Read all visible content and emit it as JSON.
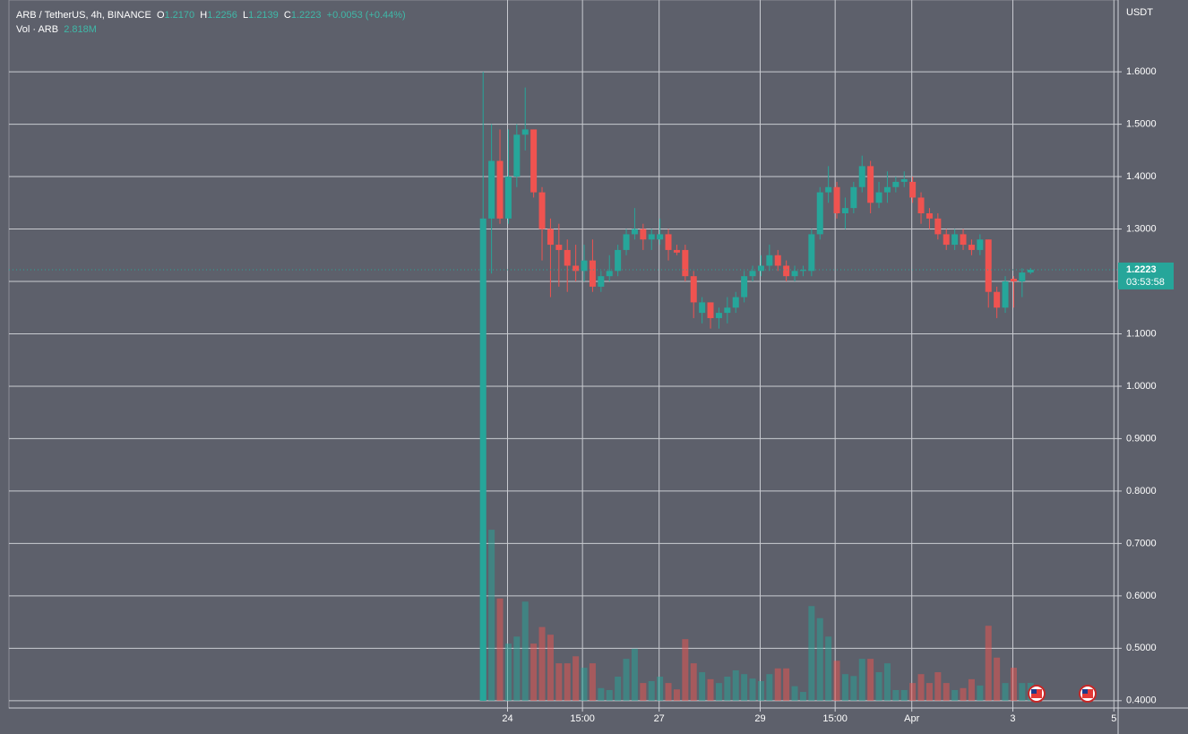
{
  "chart_data": {
    "type": "candlestick",
    "title": "ARB / TetherUS, 4h, BINANCE",
    "ohlc_labels": [
      "O",
      "H",
      "L",
      "C"
    ],
    "ohlc_values": [
      "1.2170",
      "1.2256",
      "1.2139",
      "1.2223"
    ],
    "change": "+0.0053 (+0.44%)",
    "volume_title": "Vol · ARB",
    "volume_value": "2.818M",
    "y_unit": "USDT",
    "x": [
      0,
      1,
      2,
      3,
      4,
      5,
      6,
      7,
      8,
      9,
      10,
      11,
      12,
      13,
      14,
      15,
      16,
      17,
      18,
      19,
      20,
      21,
      22,
      23,
      24,
      25,
      26,
      27,
      28,
      29,
      30,
      31,
      32,
      33,
      34,
      35,
      36,
      37,
      38,
      39,
      40,
      41,
      42,
      43,
      44,
      45,
      46,
      47,
      48,
      49,
      50,
      51,
      52,
      53,
      54,
      55,
      56,
      57,
      58,
      59,
      60,
      61,
      62,
      63,
      64,
      65
    ],
    "open": [
      0.4,
      1.32,
      1.43,
      1.32,
      1.4,
      1.48,
      1.49,
      1.37,
      1.3,
      1.27,
      1.26,
      1.23,
      1.22,
      1.24,
      1.19,
      1.21,
      1.22,
      1.26,
      1.29,
      1.3,
      1.28,
      1.28,
      1.29,
      1.26,
      1.26,
      1.21,
      1.14,
      1.16,
      1.13,
      1.14,
      1.15,
      1.17,
      1.21,
      1.22,
      1.23,
      1.25,
      1.23,
      1.21,
      1.22,
      1.22,
      1.29,
      1.37,
      1.38,
      1.33,
      1.34,
      1.38,
      1.42,
      1.35,
      1.37,
      1.38,
      1.39,
      1.39,
      1.36,
      1.33,
      1.32,
      1.29,
      1.27,
      1.29,
      1.27,
      1.26,
      1.28,
      1.18,
      1.15,
      1.205,
      1.2,
      1.217
    ],
    "high": [
      1.6,
      1.5,
      1.49,
      1.49,
      1.5,
      1.57,
      1.49,
      1.38,
      1.32,
      1.31,
      1.28,
      1.27,
      1.27,
      1.28,
      1.22,
      1.25,
      1.27,
      1.3,
      1.34,
      1.31,
      1.3,
      1.32,
      1.3,
      1.27,
      1.27,
      1.22,
      1.17,
      1.16,
      1.15,
      1.17,
      1.18,
      1.22,
      1.23,
      1.25,
      1.27,
      1.26,
      1.24,
      1.23,
      1.23,
      1.3,
      1.38,
      1.42,
      1.39,
      1.36,
      1.39,
      1.44,
      1.43,
      1.39,
      1.41,
      1.4,
      1.41,
      1.4,
      1.37,
      1.34,
      1.33,
      1.3,
      1.3,
      1.3,
      1.28,
      1.29,
      1.28,
      1.19,
      1.21,
      1.21,
      1.225,
      1.2256
    ],
    "low": [
      0.4,
      1.215,
      1.31,
      1.31,
      1.38,
      1.45,
      1.36,
      1.24,
      1.17,
      1.19,
      1.18,
      1.2,
      1.2,
      1.18,
      1.18,
      1.2,
      1.21,
      1.25,
      1.28,
      1.26,
      1.26,
      1.27,
      1.24,
      1.25,
      1.2,
      1.13,
      1.12,
      1.11,
      1.11,
      1.12,
      1.14,
      1.16,
      1.2,
      1.21,
      1.22,
      1.22,
      1.2,
      1.2,
      1.21,
      1.21,
      1.28,
      1.35,
      1.32,
      1.3,
      1.33,
      1.37,
      1.33,
      1.34,
      1.35,
      1.37,
      1.38,
      1.35,
      1.31,
      1.3,
      1.28,
      1.26,
      1.26,
      1.26,
      1.25,
      1.25,
      1.15,
      1.13,
      1.14,
      1.15,
      1.17,
      1.2139
    ],
    "close": [
      1.32,
      1.43,
      1.32,
      1.4,
      1.48,
      1.49,
      1.37,
      1.3,
      1.27,
      1.26,
      1.23,
      1.22,
      1.24,
      1.19,
      1.21,
      1.22,
      1.26,
      1.29,
      1.3,
      1.28,
      1.29,
      1.29,
      1.26,
      1.255,
      1.21,
      1.16,
      1.16,
      1.13,
      1.14,
      1.15,
      1.17,
      1.21,
      1.22,
      1.23,
      1.25,
      1.23,
      1.21,
      1.22,
      1.222,
      1.29,
      1.37,
      1.38,
      1.33,
      1.34,
      1.38,
      1.42,
      1.35,
      1.37,
      1.38,
      1.39,
      1.395,
      1.36,
      1.33,
      1.32,
      1.29,
      1.27,
      1.29,
      1.27,
      1.26,
      1.28,
      1.18,
      1.15,
      1.2,
      1.2,
      1.217,
      1.2223
    ],
    "volume": [
      26.6,
      26.9,
      16.1,
      9.0,
      10.1,
      15.6,
      9.0,
      11.6,
      10.4,
      5.9,
      5.9,
      7.0,
      5.2,
      5.9,
      2.0,
      1.7,
      3.8,
      6.6,
      8.2,
      2.8,
      3.1,
      3.8,
      2.8,
      1.8,
      9.7,
      5.9,
      4.5,
      3.4,
      2.8,
      3.8,
      4.8,
      4.2,
      3.5,
      3.1,
      4.2,
      5.1,
      5.1,
      2.3,
      1.4,
      14.9,
      13.0,
      10.1,
      6.3,
      4.2,
      3.9,
      6.6,
      6.6,
      4.5,
      5.9,
      1.7,
      1.7,
      2.8,
      4.2,
      2.8,
      4.5,
      2.8,
      1.7,
      2.0,
      3.4,
      2.4,
      11.8,
      6.8,
      2.8,
      5.2,
      2.8,
      2.818
    ],
    "vlim": [
      -1.13,
      110.2
    ],
    "ylim": [
      0.386,
      1.737
    ],
    "yticks": [
      {
        "value": 0.4,
        "label": "0.4000"
      },
      {
        "value": 0.5,
        "label": "0.5000"
      },
      {
        "value": 0.6,
        "label": "0.6000"
      },
      {
        "value": 0.7,
        "label": "0.7000"
      },
      {
        "value": 0.8,
        "label": "0.8000"
      },
      {
        "value": 0.9,
        "label": "0.9000"
      },
      {
        "value": 1.0,
        "label": "1.0000"
      },
      {
        "value": 1.1,
        "label": "1.1000"
      },
      {
        "value": 1.2,
        "label": "1.2000"
      },
      {
        "value": 1.3,
        "label": "1.3000"
      },
      {
        "value": 1.4,
        "label": "1.4000"
      },
      {
        "value": 1.5,
        "label": "1.5000"
      },
      {
        "value": 1.6,
        "label": "1.6000"
      }
    ],
    "xlim": [
      -56.3,
      75.4
    ],
    "xticks": [
      {
        "value": 2.9,
        "label": "24"
      },
      {
        "value": 11.8,
        "label": "15:00"
      },
      {
        "value": 20.9,
        "label": "27"
      },
      {
        "value": 32.9,
        "label": "29"
      },
      {
        "value": 41.8,
        "label": "15:00"
      },
      {
        "value": 50.9,
        "label": "Apr"
      },
      {
        "value": 62.9,
        "label": "3"
      },
      {
        "value": 74.9,
        "label": "5"
      }
    ],
    "last_price": 1.2223,
    "countdown": "03:53:58",
    "up_color": "#26a69a",
    "down_color": "#ef5350",
    "grid": true
  }
}
